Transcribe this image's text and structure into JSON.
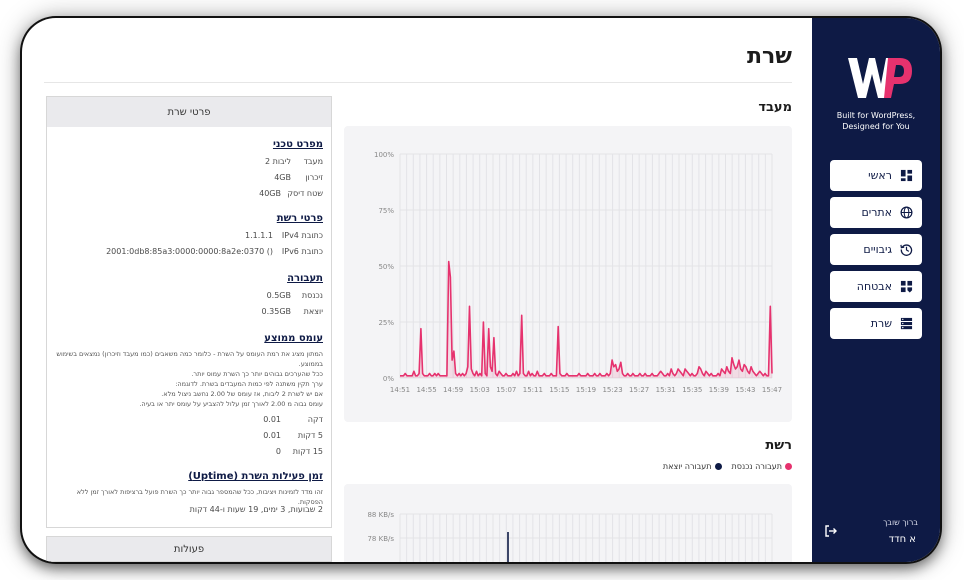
{
  "brand": {
    "tagline": "Built for WordPress, Designed for You",
    "accent": "#e6326e",
    "sidebar_bg": "#0e1a45"
  },
  "nav": [
    {
      "label": "ראשי",
      "icon": "dashboard-icon"
    },
    {
      "label": "אתרים",
      "icon": "globe-icon"
    },
    {
      "label": "גיבויים",
      "icon": "history-icon"
    },
    {
      "label": "אבטחה",
      "icon": "shield-grid-icon"
    },
    {
      "label": "שרת",
      "icon": "server-icon"
    }
  ],
  "user": {
    "greeting": "ברוך שובך",
    "name": "א חדד"
  },
  "page_title": "שרת",
  "details": {
    "title": "פרטי שרת",
    "tech": {
      "title": "מפרט טכני",
      "rows": [
        {
          "k": "מעבד",
          "v": "2 ליבות"
        },
        {
          "k": "זיכרון",
          "v": "4GB"
        },
        {
          "k": "שטח דיסק",
          "v": "40GB"
        }
      ]
    },
    "network": {
      "title": "פרטי רשת",
      "rows": [
        {
          "k": "כתובת IPv4",
          "v": "1.1.1.1"
        },
        {
          "k": "כתובת IPv6",
          "v": "2001:0db8:85a3:0000:0000:8a2e:0370 ()"
        }
      ]
    },
    "traffic": {
      "title": "תעבורה",
      "rows": [
        {
          "k": "נכנסת",
          "v": "0.5GB"
        },
        {
          "k": "יוצאת",
          "v": "0.35GB"
        }
      ]
    },
    "load": {
      "title": "עומס ממוצע",
      "lines": [
        "המתון מציג את רמת העומס על השרת - כלומר כמה משאבים (כמו מעבד וזיכרון) נמצאים בשימוש בממוצע.",
        "ככל שהערכים גבוהים יותר כך השרת עמוס יותר.",
        "ערך תקין משתנה לפי כמות המעבדים בשרת. לדוגמה:",
        "אם יש לשרת 2 ליבות, אז עומס של 2.00 נחשב ניצול מלא.",
        "עומס גבוה מ 2.00 לאורך זמן עלול להצביע על עומס יתר או בעיה."
      ],
      "rows": [
        {
          "k": "דקה",
          "v": "0.01"
        },
        {
          "k": "5 דקות",
          "v": "0.01"
        },
        {
          "k": "15 דקות",
          "v": "0"
        }
      ]
    },
    "uptime": {
      "title": "זמן פעילות השרת (Uptime)",
      "desc": "זהו מדד לזמינות ויציבות, ככל שהמספר גבוה יותר כך השרת פועל ברציפות לאורך זמן ללא הפסקות.",
      "value": "2 שבועות, 3 ימים, 19 שעות ו-44 דקות"
    }
  },
  "actions_title": "פעולות",
  "cpu": {
    "title": "מעבד",
    "chart_data": {
      "type": "line",
      "yticks": [
        "100%",
        "75%",
        "50%",
        "25%",
        "0%"
      ],
      "ylim": [
        0,
        100
      ],
      "xticks": [
        "14:51",
        "14:55",
        "14:59",
        "15:03",
        "15:07",
        "15:11",
        "15:15",
        "15:19",
        "15:23",
        "15:27",
        "15:31",
        "15:35",
        "15:39",
        "15:43",
        "15:47"
      ],
      "color": "#e6326e",
      "values": [
        1,
        1,
        1,
        2,
        1,
        1,
        1,
        1,
        3,
        1,
        1,
        2,
        22,
        2,
        1,
        1,
        1,
        2,
        1,
        1,
        2,
        1,
        2,
        1,
        1,
        1,
        1,
        1,
        52,
        45,
        8,
        12,
        2,
        1,
        2,
        1,
        2,
        1,
        2,
        5,
        32,
        4,
        2,
        1,
        3,
        1,
        2,
        1,
        25,
        2,
        1,
        22,
        5,
        3,
        18,
        2,
        1,
        3,
        2,
        1,
        1,
        2,
        1,
        1,
        1,
        2,
        1,
        3,
        1,
        2,
        28,
        2,
        1,
        1,
        3,
        1,
        2,
        1,
        1,
        3,
        1,
        1,
        1,
        2,
        1,
        1,
        1,
        2,
        1,
        1,
        1,
        23,
        2,
        1,
        1,
        1,
        2,
        1,
        1,
        1,
        1,
        1,
        1,
        2,
        1,
        1,
        1,
        1,
        2,
        1,
        1,
        1,
        2,
        1,
        1,
        2,
        1,
        1,
        1,
        2,
        1,
        2,
        8,
        5,
        6,
        3,
        4,
        7,
        2,
        1,
        1,
        2,
        1,
        1,
        2,
        1,
        1,
        1,
        2,
        1,
        1,
        2,
        1,
        1,
        1,
        2,
        1,
        1,
        1,
        2,
        3,
        2,
        1,
        1,
        2,
        1,
        4,
        2,
        1,
        2,
        4,
        3,
        2,
        1,
        4,
        3,
        2,
        1,
        2,
        1,
        1,
        2,
        5,
        4,
        2,
        1,
        3,
        2,
        1,
        2,
        1,
        1,
        1,
        2,
        1,
        4,
        3,
        2,
        5,
        3,
        2,
        9,
        6,
        4,
        5,
        8,
        4,
        3,
        6,
        5,
        3,
        2,
        5,
        3,
        2,
        1,
        2,
        3,
        2,
        1,
        2,
        1,
        1,
        32,
        2
      ]
    }
  },
  "network": {
    "title": "רשת",
    "legend": [
      {
        "label": "תעבורה נכנסת",
        "color": "#e6326e"
      },
      {
        "label": "תעבורה יוצאת",
        "color": "#0e1a45"
      }
    ],
    "chart_data": {
      "type": "line",
      "yticks": [
        "88 KB/s",
        "78 KB/s"
      ]
    }
  }
}
